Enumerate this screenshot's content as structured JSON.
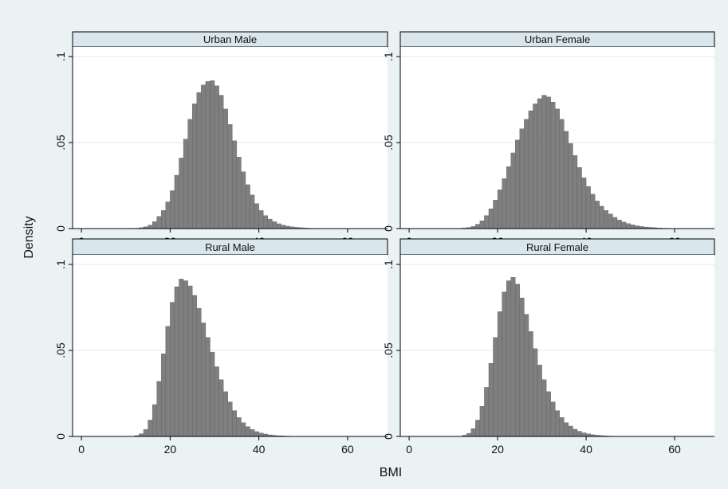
{
  "chart_data": {
    "type": "bar",
    "xlabel": "BMI",
    "ylabel": "Density",
    "xlim": [
      -2,
      69
    ],
    "ylim": [
      0,
      0.1
    ],
    "bin_start": 0,
    "bin_width": 1,
    "grid": true,
    "x_ticks": [
      0,
      20,
      40,
      60
    ],
    "y_ticks": [
      {
        "value": 0,
        "label": "0"
      },
      {
        "value": 0.05,
        "label": ".05"
      },
      {
        "value": 0.1,
        "label": ".1"
      }
    ],
    "panels": [
      {
        "title": "Urban Male",
        "values": [
          0,
          0,
          0,
          0,
          0,
          0,
          0,
          0,
          0,
          0,
          0,
          0,
          0.0002,
          0.0005,
          0.001,
          0.002,
          0.004,
          0.007,
          0.0105,
          0.0155,
          0.022,
          0.031,
          0.041,
          0.052,
          0.0635,
          0.0725,
          0.079,
          0.0835,
          0.0855,
          0.086,
          0.083,
          0.0775,
          0.0695,
          0.0605,
          0.051,
          0.0415,
          0.033,
          0.0255,
          0.0195,
          0.0145,
          0.0105,
          0.0075,
          0.0055,
          0.004,
          0.0028,
          0.002,
          0.0014,
          0.001,
          0.0007,
          0.0005,
          0.0003,
          0.0002,
          0.00015,
          0.0001,
          8e-05,
          5e-05,
          3e-05,
          2e-05,
          1e-05,
          1e-05,
          1e-05,
          0,
          0,
          0,
          0,
          0,
          0,
          0
        ]
      },
      {
        "title": "Urban Female",
        "values": [
          0,
          0,
          0,
          0,
          0,
          0,
          0,
          0,
          0,
          0,
          0,
          0,
          0.0003,
          0.0006,
          0.0012,
          0.0025,
          0.0045,
          0.0075,
          0.0115,
          0.0165,
          0.0225,
          0.029,
          0.036,
          0.044,
          0.0515,
          0.058,
          0.0635,
          0.0685,
          0.0725,
          0.0755,
          0.0775,
          0.0765,
          0.0735,
          0.0695,
          0.0635,
          0.0565,
          0.0495,
          0.0425,
          0.0355,
          0.0295,
          0.0245,
          0.02,
          0.016,
          0.013,
          0.0105,
          0.0085,
          0.0065,
          0.005,
          0.0038,
          0.0029,
          0.0022,
          0.0016,
          0.0012,
          0.0009,
          0.0007,
          0.0005,
          0.0003,
          0.0002,
          0.00015,
          0.0001,
          7e-05,
          5e-05,
          3e-05,
          2e-05,
          1e-05,
          0,
          0,
          0
        ]
      },
      {
        "title": "Rural Male",
        "values": [
          0,
          0,
          0,
          0,
          0,
          0,
          0,
          0,
          0,
          0,
          0,
          0,
          0.0005,
          0.0015,
          0.004,
          0.0095,
          0.0185,
          0.032,
          0.048,
          0.064,
          0.078,
          0.087,
          0.0915,
          0.0905,
          0.0875,
          0.082,
          0.0745,
          0.066,
          0.0575,
          0.049,
          0.0405,
          0.033,
          0.026,
          0.02,
          0.015,
          0.011,
          0.008,
          0.0057,
          0.004,
          0.0028,
          0.002,
          0.0014,
          0.0009,
          0.0006,
          0.0004,
          0.0003,
          0.0002,
          0.0001,
          7e-05,
          5e-05,
          3e-05,
          2e-05,
          1e-05,
          1e-05,
          0,
          0,
          0,
          0,
          0,
          0,
          0,
          0,
          0,
          0,
          0,
          0,
          0,
          0
        ]
      },
      {
        "title": "Rural Female",
        "values": [
          0,
          0,
          0,
          0,
          0,
          0,
          0,
          0,
          0,
          0,
          0,
          0,
          0.0007,
          0.0018,
          0.0045,
          0.0095,
          0.0175,
          0.0285,
          0.0425,
          0.0575,
          0.0725,
          0.084,
          0.0905,
          0.0925,
          0.0885,
          0.0805,
          0.071,
          0.061,
          0.051,
          0.0415,
          0.033,
          0.026,
          0.02,
          0.015,
          0.011,
          0.008,
          0.006,
          0.0042,
          0.003,
          0.0021,
          0.0015,
          0.001,
          0.0007,
          0.0005,
          0.0003,
          0.0002,
          0.00014,
          0.0001,
          6e-05,
          4e-05,
          2e-05,
          1e-05,
          0,
          0,
          0,
          0,
          0,
          0,
          0,
          0,
          0,
          0,
          0,
          0,
          0,
          0,
          0,
          0
        ]
      }
    ]
  },
  "colors": {
    "background": "#eaf2f3",
    "plot_bg": "#ffffff",
    "header_bg": "#d9e6eb",
    "bar_fill": "#7f7f7f",
    "bar_stroke": "#5f5f5f",
    "grid": "#eaf2f3",
    "axis": "#000000"
  }
}
